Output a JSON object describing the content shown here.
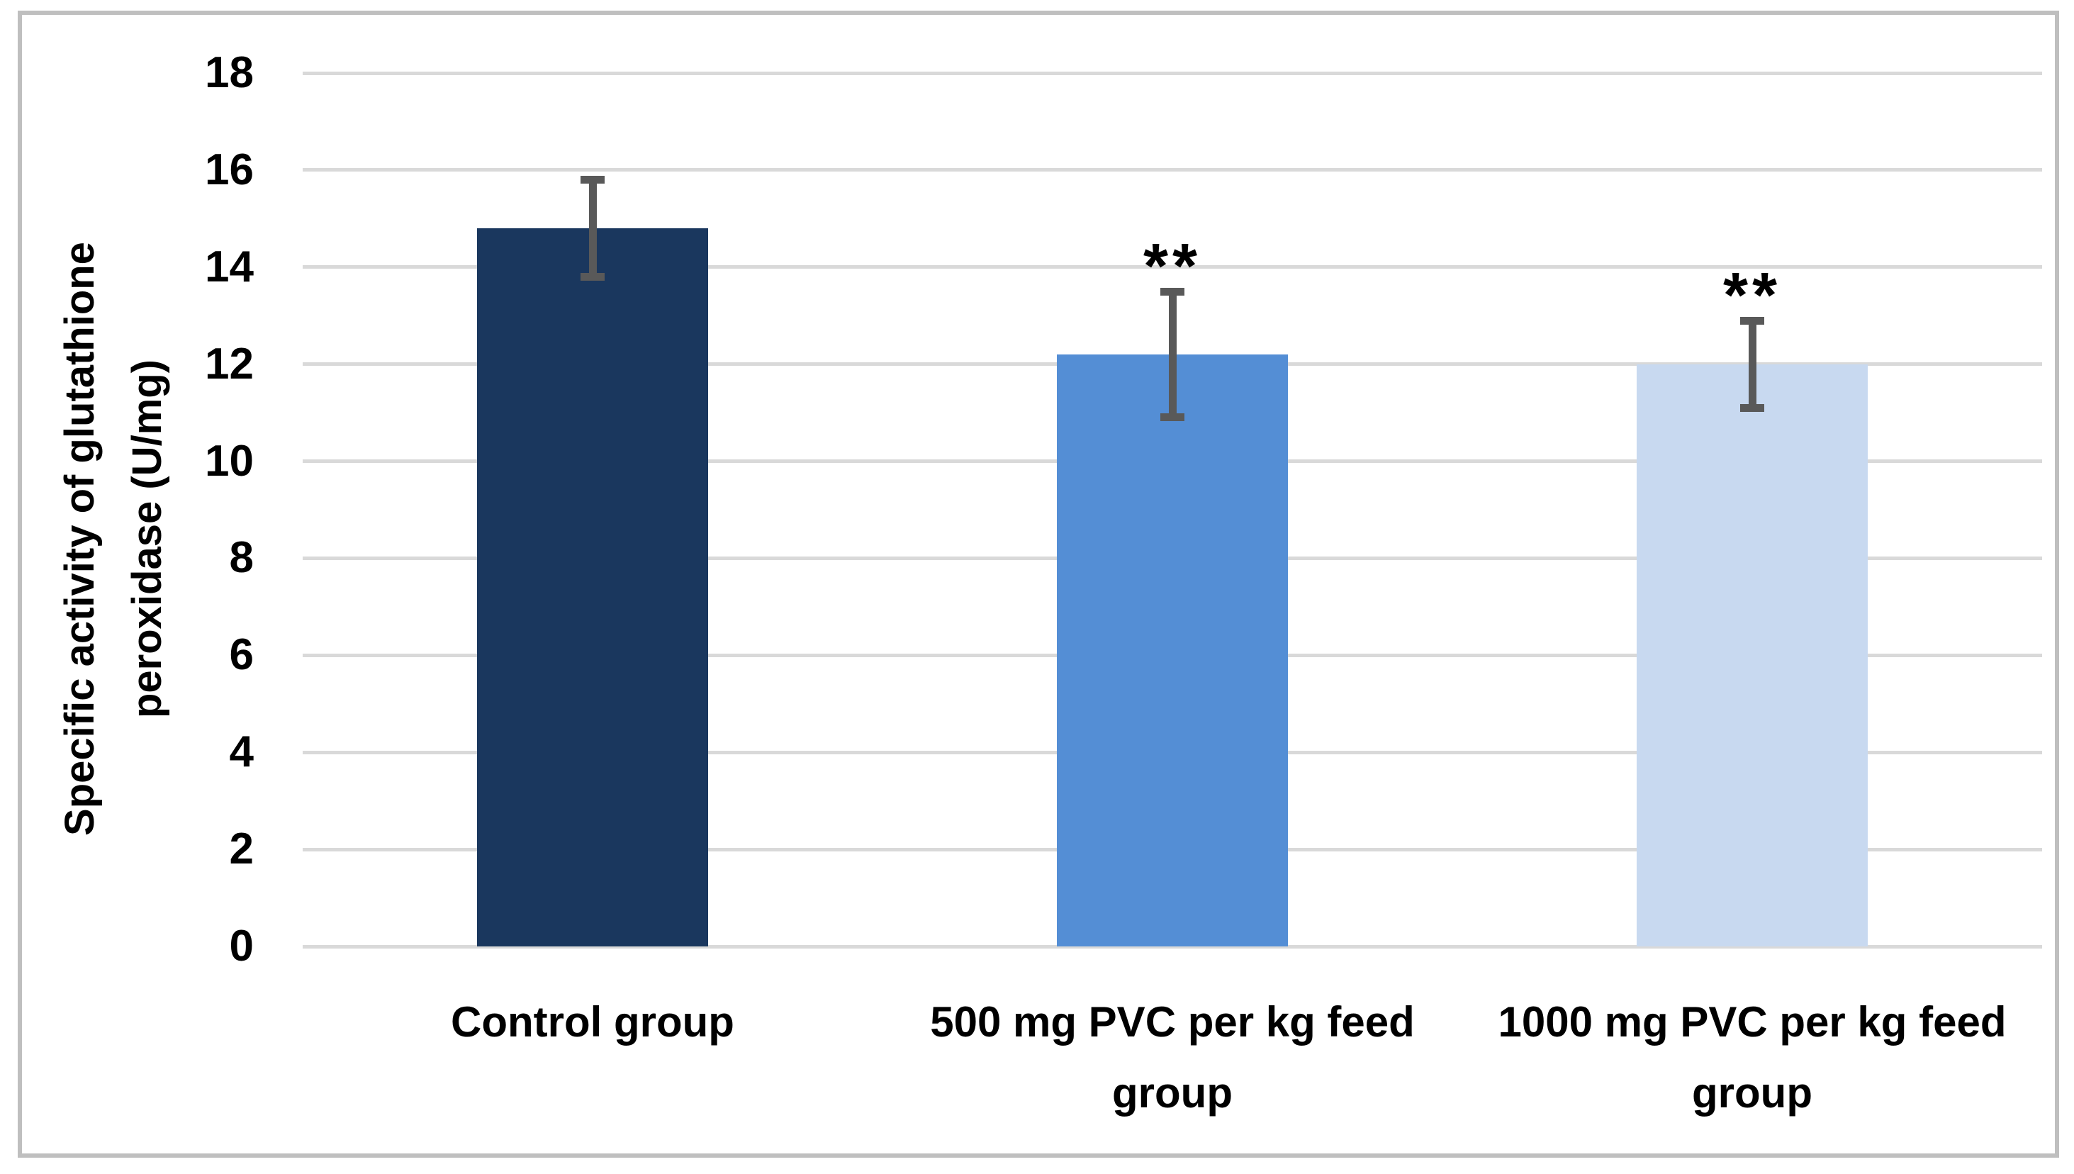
{
  "chart_data": {
    "type": "bar",
    "title": "",
    "xlabel": "",
    "ylabel": "Specific activity of glutathione peroxidase (U/mg)",
    "ylabel_lines": [
      "Specific activity of glutathione",
      "peroxidase (U/mg)"
    ],
    "ylim": [
      0,
      18
    ],
    "yticks": [
      0,
      2,
      4,
      6,
      8,
      10,
      12,
      14,
      16,
      18
    ],
    "grid": true,
    "legend": false,
    "categories": [
      "Control group",
      "500 mg PVC per kg feed group",
      "1000 mg PVC per kg feed group"
    ],
    "category_label_lines": [
      [
        "Control group"
      ],
      [
        "500 mg PVC per kg feed",
        "group"
      ],
      [
        "1000 mg PVC per kg feed",
        "group"
      ]
    ],
    "values": [
      14.8,
      12.2,
      12.0
    ],
    "error_low": [
      13.8,
      10.9,
      11.1
    ],
    "error_high": [
      15.8,
      13.5,
      12.9
    ],
    "bar_colors": [
      "#1A375E",
      "#548ED5",
      "#C8D9F0"
    ],
    "annotations": [
      {
        "category_index": 1,
        "text": "**"
      },
      {
        "category_index": 2,
        "text": "**"
      }
    ],
    "colors": {
      "gridline": "#D9D9D9",
      "axis_line": "#D9D9D9",
      "error_bar": "#595959",
      "frame_border": "#BFBFBF",
      "text": "#000000",
      "background": "#FFFFFF"
    }
  }
}
